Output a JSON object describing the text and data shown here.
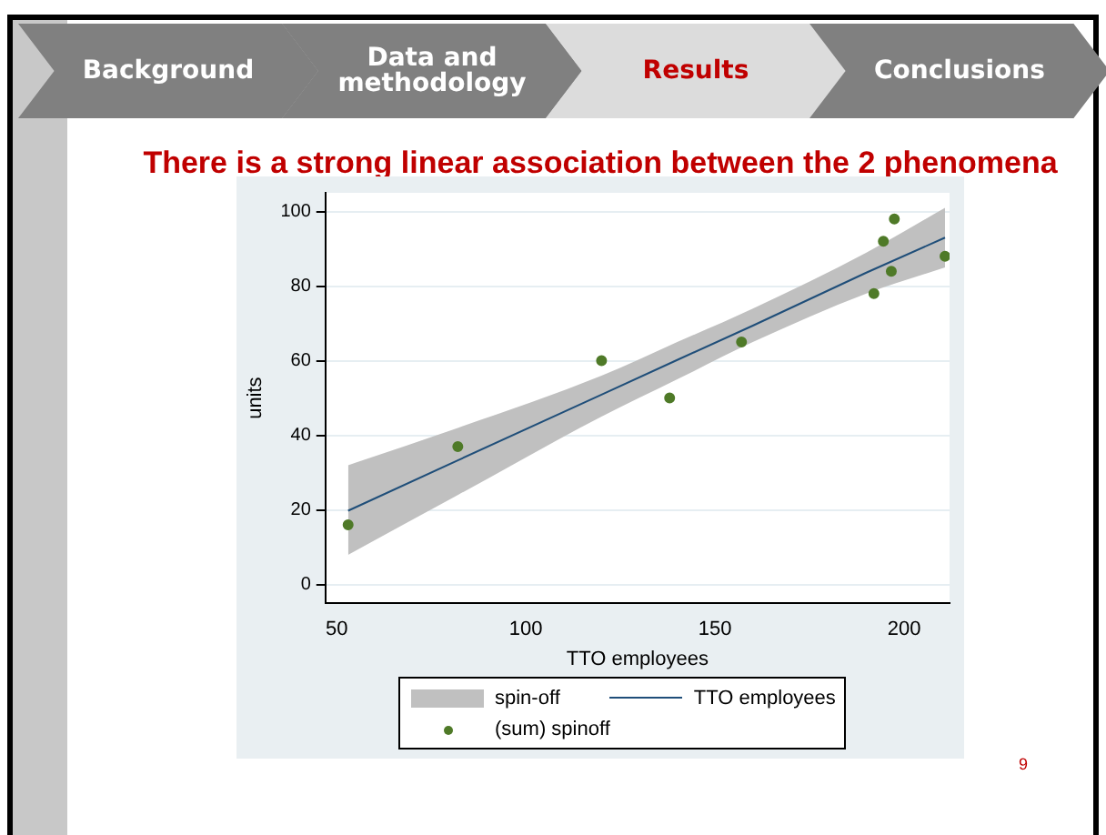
{
  "chart_data": {
    "type": "line",
    "title": "There is a strong linear association between the 2 phenomena",
    "xlabel": "TTO employees",
    "ylabel": "units",
    "annotations": [
      "Background",
      "Data and methodology",
      "Results",
      "Conclusions",
      "9",
      "spin-off"
    ],
    "series": [
      {
        "name": "TTO employees",
        "color": "#1f4e79",
        "x": [
          53,
          82,
          120,
          140,
          160,
          190,
          210.8
        ],
        "values": [
          19.8,
          33.3,
          50.9,
          60.2,
          69.4,
          83.6,
          93
        ],
        "lower": [
          8,
          24,
          45,
          55,
          65,
          78,
          85
        ],
        "upper": [
          32,
          42,
          56,
          65,
          74,
          89,
          101
        ]
      },
      {
        "name": "(sum) spinoff",
        "type": "scatter",
        "marker": "circle",
        "color": "#4f7a28",
        "x": [
          53,
          82,
          120,
          138,
          157,
          192,
          194.5,
          196.6,
          197.4,
          210.8
        ],
        "values": [
          16,
          37,
          60,
          50,
          65,
          78,
          92,
          84,
          98,
          88
        ]
      }
    ],
    "xlim": [
      47,
      212
    ],
    "xticks": [
      50,
      100,
      150,
      200
    ],
    "ylim": [
      -5,
      105
    ],
    "yticks": [
      0,
      20,
      40,
      60,
      80,
      100
    ],
    "grid": "y",
    "legend": "bottom",
    "line_style": "solid"
  }
}
